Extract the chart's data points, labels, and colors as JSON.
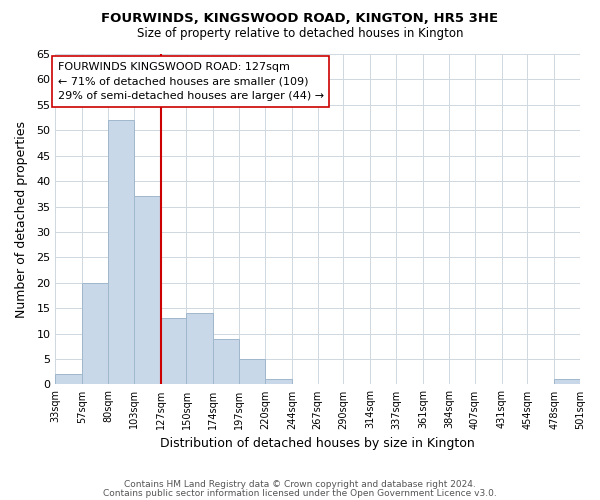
{
  "title": "FOURWINDS, KINGSWOOD ROAD, KINGTON, HR5 3HE",
  "subtitle": "Size of property relative to detached houses in Kington",
  "xlabel": "Distribution of detached houses by size in Kington",
  "ylabel": "Number of detached properties",
  "bar_edges": [
    33,
    57,
    80,
    103,
    127,
    150,
    174,
    197,
    220,
    244,
    267,
    290,
    314,
    337,
    361,
    384,
    407,
    431,
    454,
    478,
    501
  ],
  "bar_heights": [
    2,
    20,
    52,
    37,
    13,
    14,
    9,
    5,
    1,
    0,
    0,
    0,
    0,
    0,
    0,
    0,
    0,
    0,
    0,
    1
  ],
  "bar_color": "#c8d8e8",
  "bar_edgecolor": "#a0b8cc",
  "vline_x": 127,
  "vline_color": "#cc0000",
  "annotation_line1": "FOURWINDS KINGSWOOD ROAD: 127sqm",
  "annotation_line2": "← 71% of detached houses are smaller (109)",
  "annotation_line3": "29% of semi-detached houses are larger (44) →",
  "ylim": [
    0,
    65
  ],
  "yticks": [
    0,
    5,
    10,
    15,
    20,
    25,
    30,
    35,
    40,
    45,
    50,
    55,
    60,
    65
  ],
  "tick_labels": [
    "33sqm",
    "57sqm",
    "80sqm",
    "103sqm",
    "127sqm",
    "150sqm",
    "174sqm",
    "197sqm",
    "220sqm",
    "244sqm",
    "267sqm",
    "290sqm",
    "314sqm",
    "337sqm",
    "361sqm",
    "384sqm",
    "407sqm",
    "431sqm",
    "454sqm",
    "478sqm",
    "501sqm"
  ],
  "footer_line1": "Contains HM Land Registry data © Crown copyright and database right 2024.",
  "footer_line2": "Contains public sector information licensed under the Open Government Licence v3.0.",
  "background_color": "#ffffff",
  "grid_color": "#d0d8e0"
}
